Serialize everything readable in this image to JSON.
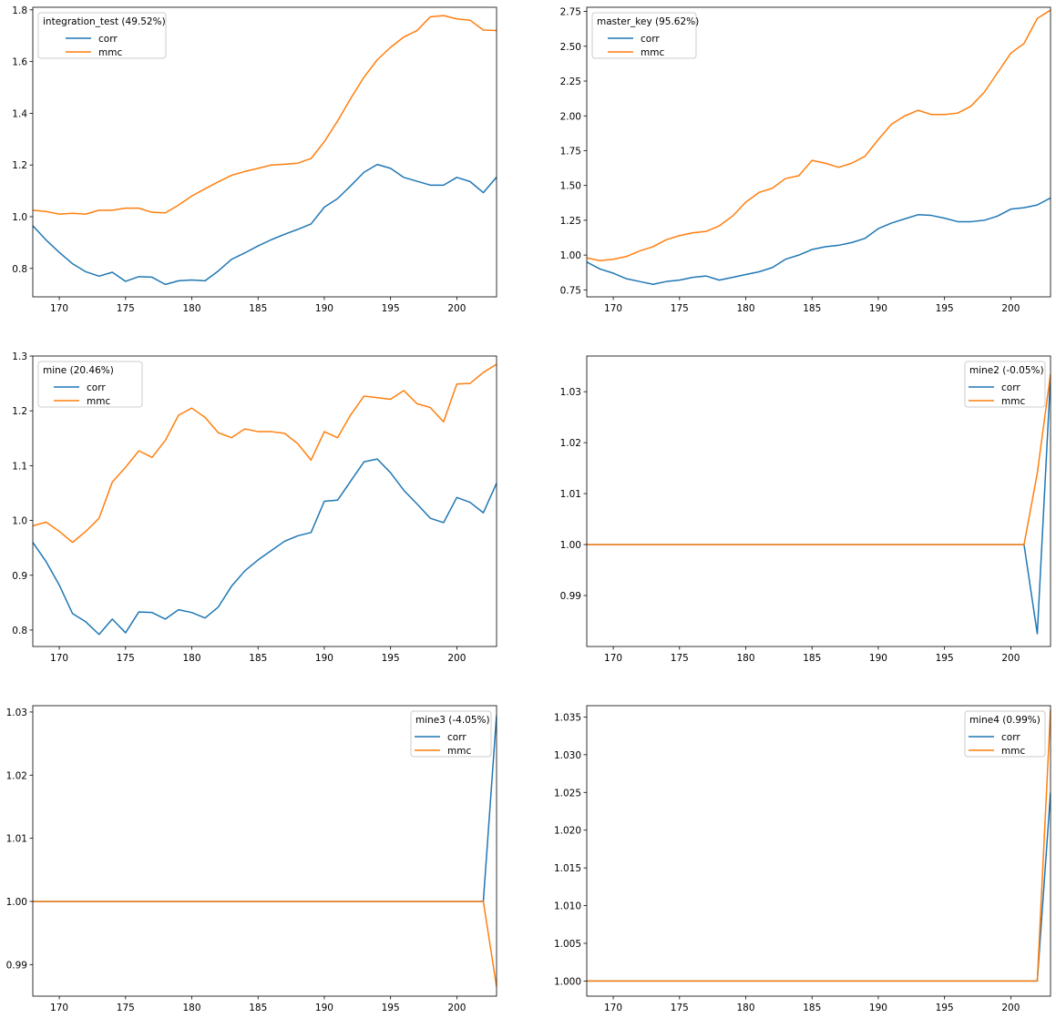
{
  "figure": {
    "background": "#ffffff"
  },
  "colors": {
    "corr": "#1f77b4",
    "mmc": "#ff7f0e"
  },
  "chart_data": [
    {
      "type": "line",
      "legend_title": "integration_test (49.52%)",
      "legend_position": "upper left",
      "xlim": [
        168,
        203
      ],
      "ylim": [
        0.69,
        1.81
      ],
      "xticks": [
        170,
        175,
        180,
        185,
        190,
        195,
        200
      ],
      "yticks": [
        0.8,
        1.0,
        1.2,
        1.4,
        1.6,
        1.8
      ],
      "ytick_labels": [
        "0.8",
        "1.0",
        "1.2",
        "1.4",
        "1.6",
        "1.8"
      ],
      "x": [
        168,
        169,
        170,
        171,
        172,
        173,
        174,
        175,
        176,
        177,
        178,
        179,
        180,
        181,
        182,
        183,
        184,
        185,
        186,
        187,
        188,
        189,
        190,
        191,
        192,
        193,
        194,
        195,
        196,
        197,
        198,
        199,
        200,
        201,
        202,
        203
      ],
      "series": [
        {
          "name": "corr",
          "values": [
            0.965,
            0.91,
            0.862,
            0.818,
            0.787,
            0.77,
            0.785,
            0.75,
            0.768,
            0.766,
            0.738,
            0.752,
            0.755,
            0.752,
            0.79,
            0.835,
            0.86,
            0.887,
            0.911,
            0.932,
            0.951,
            0.972,
            1.037,
            1.07,
            1.12,
            1.172,
            1.202,
            1.187,
            1.152,
            1.137,
            1.122,
            1.122,
            1.152,
            1.136,
            1.093,
            1.153
          ]
        },
        {
          "name": "mmc",
          "values": [
            1.025,
            1.02,
            1.01,
            1.013,
            1.01,
            1.025,
            1.025,
            1.033,
            1.033,
            1.017,
            1.015,
            1.045,
            1.08,
            1.108,
            1.135,
            1.16,
            1.175,
            1.187,
            1.2,
            1.203,
            1.207,
            1.225,
            1.29,
            1.37,
            1.458,
            1.54,
            1.607,
            1.655,
            1.695,
            1.72,
            1.773,
            1.778,
            1.765,
            1.76,
            1.722,
            1.72
          ]
        }
      ]
    },
    {
      "type": "line",
      "legend_title": "master_key (95.62%)",
      "legend_position": "upper left",
      "xlim": [
        168,
        203
      ],
      "ylim": [
        0.7,
        2.78
      ],
      "xticks": [
        170,
        175,
        180,
        185,
        190,
        195,
        200
      ],
      "yticks": [
        0.75,
        1.0,
        1.25,
        1.5,
        1.75,
        2.0,
        2.25,
        2.5,
        2.75
      ],
      "ytick_labels": [
        "0.75",
        "1.00",
        "1.25",
        "1.50",
        "1.75",
        "2.00",
        "2.25",
        "2.50",
        "2.75"
      ],
      "x": [
        168,
        169,
        170,
        171,
        172,
        173,
        174,
        175,
        176,
        177,
        178,
        179,
        180,
        181,
        182,
        183,
        184,
        185,
        186,
        187,
        188,
        189,
        190,
        191,
        192,
        193,
        194,
        195,
        196,
        197,
        198,
        199,
        200,
        201,
        202,
        203
      ],
      "series": [
        {
          "name": "corr",
          "values": [
            0.95,
            0.9,
            0.87,
            0.83,
            0.81,
            0.79,
            0.81,
            0.82,
            0.84,
            0.85,
            0.82,
            0.84,
            0.86,
            0.88,
            0.91,
            0.97,
            1.0,
            1.04,
            1.06,
            1.07,
            1.09,
            1.12,
            1.19,
            1.23,
            1.26,
            1.29,
            1.285,
            1.265,
            1.24,
            1.24,
            1.25,
            1.28,
            1.33,
            1.34,
            1.36,
            1.41
          ]
        },
        {
          "name": "mmc",
          "values": [
            0.98,
            0.96,
            0.97,
            0.99,
            1.03,
            1.06,
            1.11,
            1.14,
            1.16,
            1.17,
            1.21,
            1.28,
            1.38,
            1.45,
            1.48,
            1.55,
            1.57,
            1.68,
            1.66,
            1.63,
            1.66,
            1.71,
            1.83,
            1.94,
            2.0,
            2.04,
            2.01,
            2.01,
            2.02,
            2.07,
            2.17,
            2.31,
            2.45,
            2.52,
            2.7,
            2.76
          ]
        }
      ]
    },
    {
      "type": "line",
      "legend_title": "mine (20.46%)",
      "legend_position": "upper left",
      "xlim": [
        168,
        203
      ],
      "ylim": [
        0.77,
        1.3
      ],
      "xticks": [
        170,
        175,
        180,
        185,
        190,
        195,
        200
      ],
      "yticks": [
        0.8,
        0.9,
        1.0,
        1.1,
        1.2,
        1.3
      ],
      "ytick_labels": [
        "0.8",
        "0.9",
        "1.0",
        "1.1",
        "1.2",
        "1.3"
      ],
      "x": [
        168,
        169,
        170,
        171,
        172,
        173,
        174,
        175,
        176,
        177,
        178,
        179,
        180,
        181,
        182,
        183,
        184,
        185,
        186,
        187,
        188,
        189,
        190,
        191,
        192,
        193,
        194,
        195,
        196,
        197,
        198,
        199,
        200,
        201,
        202,
        203
      ],
      "series": [
        {
          "name": "corr",
          "values": [
            0.96,
            0.925,
            0.882,
            0.83,
            0.815,
            0.792,
            0.82,
            0.795,
            0.833,
            0.832,
            0.82,
            0.837,
            0.832,
            0.822,
            0.842,
            0.88,
            0.908,
            0.928,
            0.945,
            0.962,
            0.972,
            0.978,
            1.035,
            1.037,
            1.072,
            1.107,
            1.112,
            1.087,
            1.055,
            1.03,
            1.004,
            0.996,
            1.042,
            1.033,
            1.014,
            1.068
          ]
        },
        {
          "name": "mmc",
          "values": [
            0.99,
            0.997,
            0.98,
            0.96,
            0.98,
            1.004,
            1.07,
            1.097,
            1.127,
            1.115,
            1.146,
            1.192,
            1.205,
            1.188,
            1.16,
            1.151,
            1.167,
            1.162,
            1.162,
            1.159,
            1.14,
            1.11,
            1.162,
            1.151,
            1.193,
            1.227,
            1.224,
            1.221,
            1.237,
            1.213,
            1.206,
            1.18,
            1.249,
            1.25,
            1.27,
            1.285
          ]
        }
      ]
    },
    {
      "type": "line",
      "legend_title": "mine2 (-0.05%)",
      "legend_position": "upper right",
      "xlim": [
        168,
        203
      ],
      "ylim": [
        0.98,
        1.037
      ],
      "xticks": [
        170,
        175,
        180,
        185,
        190,
        195,
        200
      ],
      "yticks": [
        0.99,
        1.0,
        1.01,
        1.02,
        1.03
      ],
      "ytick_labels": [
        "0.99",
        "1.00",
        "1.01",
        "1.02",
        "1.03"
      ],
      "x": [
        168,
        169,
        170,
        171,
        172,
        173,
        174,
        175,
        176,
        177,
        178,
        179,
        180,
        181,
        182,
        183,
        184,
        185,
        186,
        187,
        188,
        189,
        190,
        191,
        192,
        193,
        194,
        195,
        196,
        197,
        198,
        199,
        200,
        201,
        202,
        203
      ],
      "series": [
        {
          "name": "corr",
          "values": [
            1,
            1,
            1,
            1,
            1,
            1,
            1,
            1,
            1,
            1,
            1,
            1,
            1,
            1,
            1,
            1,
            1,
            1,
            1,
            1,
            1,
            1,
            1,
            1,
            1,
            1,
            1,
            1,
            1,
            1,
            1,
            1,
            1,
            1,
            0.9825,
            1.033
          ]
        },
        {
          "name": "mmc",
          "values": [
            1,
            1,
            1,
            1,
            1,
            1,
            1,
            1,
            1,
            1,
            1,
            1,
            1,
            1,
            1,
            1,
            1,
            1,
            1,
            1,
            1,
            1,
            1,
            1,
            1,
            1,
            1,
            1,
            1,
            1,
            1,
            1,
            1,
            1,
            1.014,
            1.0335
          ]
        }
      ]
    },
    {
      "type": "line",
      "legend_title": "mine3 (-4.05%)",
      "legend_position": "upper right",
      "xlim": [
        168,
        203
      ],
      "ylim": [
        0.985,
        1.031
      ],
      "xticks": [
        170,
        175,
        180,
        185,
        190,
        195,
        200
      ],
      "yticks": [
        0.99,
        1.0,
        1.01,
        1.02,
        1.03
      ],
      "ytick_labels": [
        "0.99",
        "1.00",
        "1.01",
        "1.02",
        "1.03"
      ],
      "x": [
        168,
        169,
        170,
        171,
        172,
        173,
        174,
        175,
        176,
        177,
        178,
        179,
        180,
        181,
        182,
        183,
        184,
        185,
        186,
        187,
        188,
        189,
        190,
        191,
        192,
        193,
        194,
        195,
        196,
        197,
        198,
        199,
        200,
        201,
        202,
        203
      ],
      "series": [
        {
          "name": "corr",
          "values": [
            1,
            1,
            1,
            1,
            1,
            1,
            1,
            1,
            1,
            1,
            1,
            1,
            1,
            1,
            1,
            1,
            1,
            1,
            1,
            1,
            1,
            1,
            1,
            1,
            1,
            1,
            1,
            1,
            1,
            1,
            1,
            1,
            1,
            1,
            1,
            1.0295
          ]
        },
        {
          "name": "mmc",
          "values": [
            1,
            1,
            1,
            1,
            1,
            1,
            1,
            1,
            1,
            1,
            1,
            1,
            1,
            1,
            1,
            1,
            1,
            1,
            1,
            1,
            1,
            1,
            1,
            1,
            1,
            1,
            1,
            1,
            1,
            1,
            1,
            1,
            1,
            1,
            1,
            0.9865
          ]
        }
      ]
    },
    {
      "type": "line",
      "legend_title": "mine4 (0.99%)",
      "legend_position": "upper right",
      "xlim": [
        168,
        203
      ],
      "ylim": [
        0.998,
        1.0365
      ],
      "xticks": [
        170,
        175,
        180,
        185,
        190,
        195,
        200
      ],
      "yticks": [
        1.0,
        1.005,
        1.01,
        1.015,
        1.02,
        1.025,
        1.03,
        1.035
      ],
      "ytick_labels": [
        "1.000",
        "1.005",
        "1.010",
        "1.015",
        "1.020",
        "1.025",
        "1.030",
        "1.035"
      ],
      "x": [
        168,
        169,
        170,
        171,
        172,
        173,
        174,
        175,
        176,
        177,
        178,
        179,
        180,
        181,
        182,
        183,
        184,
        185,
        186,
        187,
        188,
        189,
        190,
        191,
        192,
        193,
        194,
        195,
        196,
        197,
        198,
        199,
        200,
        201,
        202,
        203
      ],
      "series": [
        {
          "name": "corr",
          "values": [
            1,
            1,
            1,
            1,
            1,
            1,
            1,
            1,
            1,
            1,
            1,
            1,
            1,
            1,
            1,
            1,
            1,
            1,
            1,
            1,
            1,
            1,
            1,
            1,
            1,
            1,
            1,
            1,
            1,
            1,
            1,
            1,
            1,
            1,
            1,
            1.025
          ]
        },
        {
          "name": "mmc",
          "values": [
            1,
            1,
            1,
            1,
            1,
            1,
            1,
            1,
            1,
            1,
            1,
            1,
            1,
            1,
            1,
            1,
            1,
            1,
            1,
            1,
            1,
            1,
            1,
            1,
            1,
            1,
            1,
            1,
            1,
            1,
            1,
            1,
            1,
            1,
            1,
            1.036
          ]
        }
      ]
    }
  ]
}
